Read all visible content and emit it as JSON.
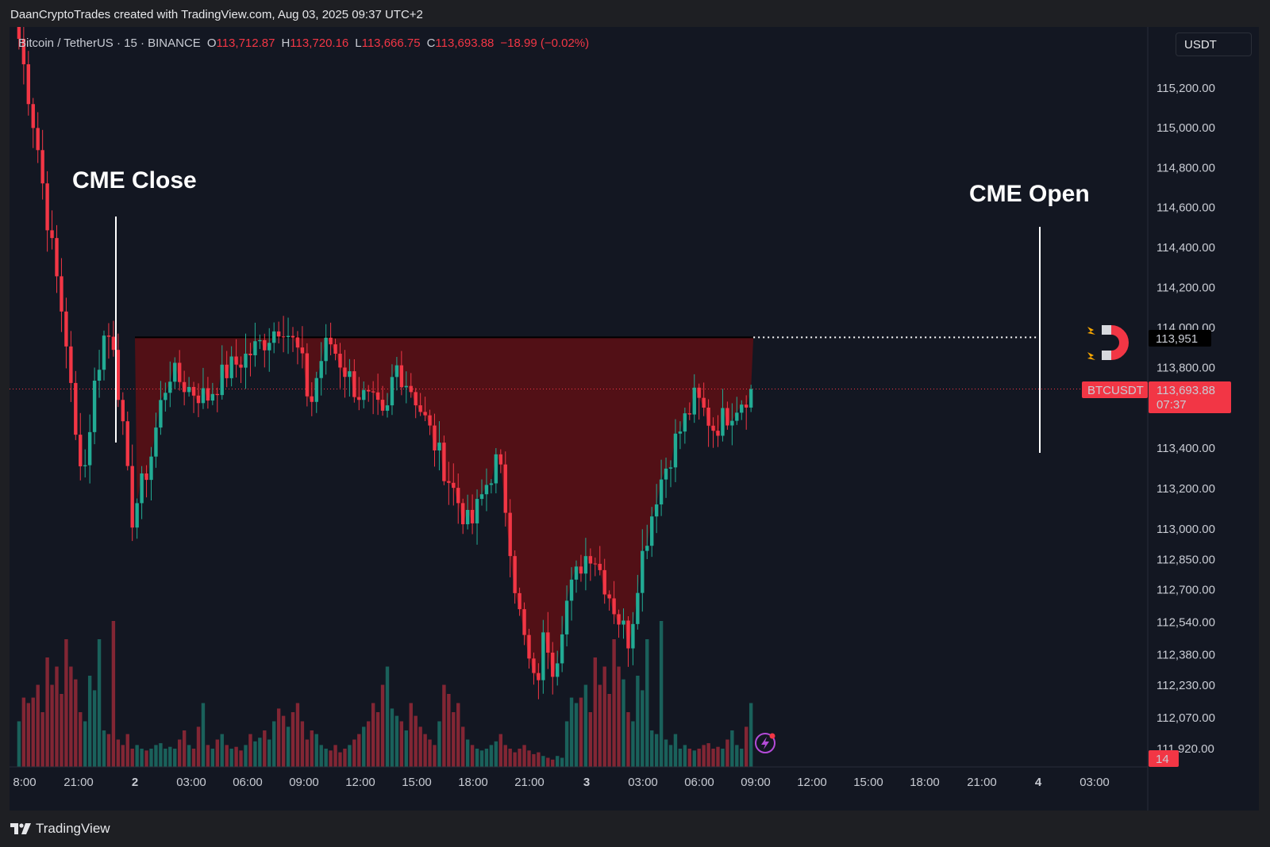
{
  "header": {
    "credit": "DaanCryptoTrades created with TradingView.com, Aug 03, 2025 09:37 UTC+2"
  },
  "legend": {
    "symbol": "Bitcoin / TetherUS · 15 · BINANCE",
    "open_label": "O",
    "open": "113,712.87",
    "high_label": "H",
    "high": "113,720.16",
    "low_label": "L",
    "low": "113,666.75",
    "close_label": "C",
    "close": "113,693.88",
    "change": "−18.99 (−0.02%)"
  },
  "currency": "USDT",
  "footer": {
    "brand": "TradingView"
  },
  "colors": {
    "background": "#131722",
    "up": "#22ab94",
    "down": "#f23645",
    "gap_fill": "#5e0f14",
    "price_label": "#f23645"
  },
  "icons": {
    "magnet": "magnet-icon",
    "lightning": "lightning-icon",
    "logo": "tradingview-logo-icon"
  },
  "chart_data": {
    "type": "candlestick",
    "title": "Bitcoin / TetherUS · 15 · BINANCE",
    "x_ticks": [
      "8:00",
      "21:00",
      "2",
      "03:00",
      "06:00",
      "09:00",
      "12:00",
      "15:00",
      "18:00",
      "21:00",
      "3",
      "03:00",
      "06:00",
      "09:00",
      "12:00",
      "15:00",
      "18:00",
      "21:00",
      "4",
      "03:00"
    ],
    "y_ticks": [
      "115,200.00",
      "115,000.00",
      "114,800.00",
      "114,600.00",
      "114,400.00",
      "114,200.00",
      "114,000.00",
      "113,800.00",
      "113,400.00",
      "113,200.00",
      "113,000.00",
      "112,850.00",
      "112,700.00",
      "112,540.00",
      "112,380.00",
      "112,230.00",
      "112,070.00",
      "111,920.00"
    ],
    "y_scale": "log",
    "ylim": [
      111880,
      115400
    ],
    "gap_level": 113951,
    "gap_level_label": "113,951",
    "current_price": 113693.88,
    "current_price_label": "113,693.88",
    "countdown": "07:37",
    "symbol_tag": "BTCUSDT",
    "event_badge": "14",
    "annotations": [
      {
        "text": "CME Close",
        "at": "22:30"
      },
      {
        "text": "CME Open",
        "at": "4"
      }
    ],
    "price_path": [
      [
        "18:00",
        115450
      ],
      [
        "19:00",
        114900
      ],
      [
        "19:30",
        114550
      ],
      [
        "20:00",
        114250
      ],
      [
        "20:30",
        113950
      ],
      [
        "21:00",
        113450
      ],
      [
        "21:30",
        113300
      ],
      [
        "22:00",
        113700
      ],
      [
        "22:30",
        113951
      ],
      [
        "23:00",
        113960
      ],
      [
        "23:30",
        113500
      ],
      [
        "2",
        113050
      ],
      [
        "00:30",
        113200
      ],
      [
        "01:00",
        113350
      ],
      [
        "01:30",
        113600
      ],
      [
        "02:00",
        113780
      ],
      [
        "03:00",
        113700
      ],
      [
        "04:00",
        113650
      ],
      [
        "05:00",
        113780
      ],
      [
        "06:00",
        113850
      ],
      [
        "07:00",
        113930
      ],
      [
        "08:00",
        114030
      ],
      [
        "09:00",
        113850
      ],
      [
        "09:30",
        113600
      ],
      [
        "10:00",
        113820
      ],
      [
        "10:30",
        113940
      ],
      [
        "11:00",
        113850
      ],
      [
        "12:00",
        113680
      ],
      [
        "13:00",
        113600
      ],
      [
        "13:30",
        113510
      ],
      [
        "14:00",
        113820
      ],
      [
        "15:00",
        113680
      ],
      [
        "16:00",
        113450
      ],
      [
        "17:00",
        113220
      ],
      [
        "18:00",
        113000
      ],
      [
        "19:00",
        113250
      ],
      [
        "19:30",
        113350
      ],
      [
        "20:00",
        113050
      ],
      [
        "20:30",
        112650
      ],
      [
        "21:00",
        112400
      ],
      [
        "21:30",
        112200
      ],
      [
        "22:00",
        112500
      ],
      [
        "22:30",
        112300
      ],
      [
        "23:00",
        112600
      ],
      [
        "3",
        112850
      ],
      [
        "00:30",
        112900
      ],
      [
        "01:00",
        112780
      ],
      [
        "02:00",
        112540
      ],
      [
        "02:30",
        112450
      ],
      [
        "03:00",
        112800
      ],
      [
        "04:00",
        113200
      ],
      [
        "05:00",
        113450
      ],
      [
        "06:00",
        113650
      ],
      [
        "07:00",
        113500
      ],
      [
        "08:00",
        113600
      ],
      [
        "09:00",
        113694
      ]
    ],
    "volume_relative": [
      0.25,
      0.38,
      0.35,
      0.38,
      0.45,
      0.3,
      0.6,
      0.45,
      0.55,
      0.4,
      0.7,
      0.55,
      0.48,
      0.3,
      0.25,
      0.5,
      0.42,
      0.7,
      0.2,
      0.18,
      0.8,
      0.15,
      0.12,
      0.18,
      0.1,
      0.12,
      0.1,
      0.09,
      0.1,
      0.12,
      0.13,
      0.1,
      0.11,
      0.1,
      0.15,
      0.2,
      0.12,
      0.1,
      0.22,
      0.35,
      0.12,
      0.1,
      0.15,
      0.18,
      0.12,
      0.1,
      0.11,
      0.09,
      0.12,
      0.18,
      0.14,
      0.16,
      0.2,
      0.15,
      0.25,
      0.32,
      0.28,
      0.22,
      0.3,
      0.35,
      0.25,
      0.15,
      0.2,
      0.18,
      0.12,
      0.1,
      0.09,
      0.12,
      0.08,
      0.1,
      0.12,
      0.15,
      0.18,
      0.22,
      0.25,
      0.35,
      0.3,
      0.45,
      0.55,
      0.32,
      0.28,
      0.25,
      0.2,
      0.35,
      0.28,
      0.22,
      0.18,
      0.15,
      0.12,
      0.25,
      0.45,
      0.4,
      0.3,
      0.35,
      0.22,
      0.15,
      0.12,
      0.1,
      0.09,
      0.1,
      0.12,
      0.14,
      0.18,
      0.12,
      0.1,
      0.08,
      0.1,
      0.12,
      0.09,
      0.07,
      0.08,
      0.06,
      0.05,
      0.04,
      0.06,
      0.05
    ]
  }
}
